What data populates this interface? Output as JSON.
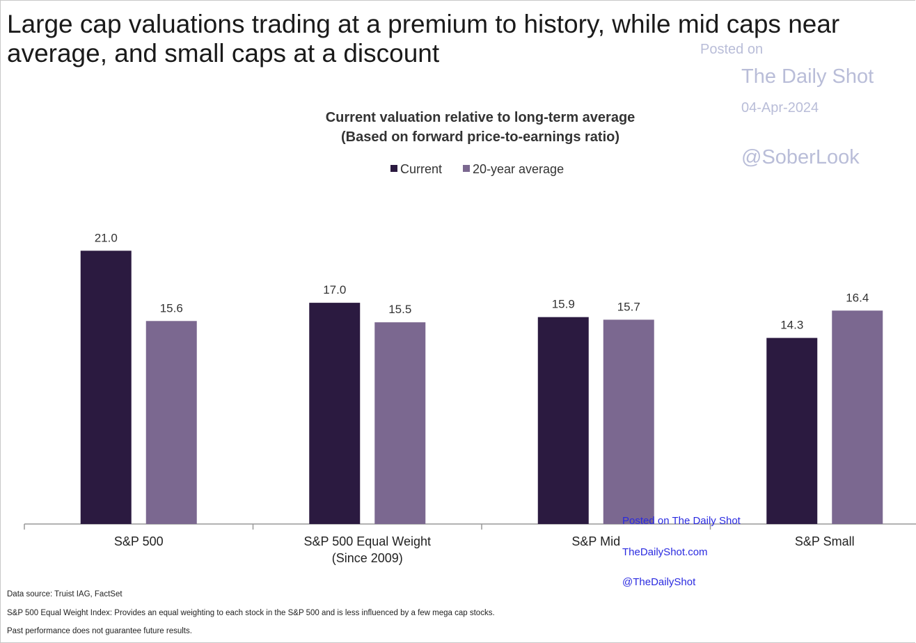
{
  "headline": "Large cap valuations trading at a premium to history, while mid caps near\naverage, and small caps at a discount",
  "watermark": {
    "posted": "Posted on",
    "source": "The Daily Shot",
    "date": "04-Apr-2024",
    "handle": "@SoberLook"
  },
  "overlay": {
    "posted": "Posted on The Daily Shot",
    "site": "TheDailyShot.com",
    "handle": "@TheDailyShot"
  },
  "chart_data": {
    "type": "bar",
    "title": "Current valuation relative to long-term average",
    "subtitle": "(Based on forward price-to-earnings ratio)",
    "categories": [
      "S&P 500",
      "S&P 500 Equal Weight\n(Since 2009)",
      "S&P Mid",
      "S&P Small"
    ],
    "series": [
      {
        "name": "Current",
        "color": "#2b1a40",
        "values": [
          21.0,
          17.0,
          15.9,
          14.3
        ],
        "value_labels": [
          "21.0",
          "17.0",
          "15.9",
          "14.3"
        ]
      },
      {
        "name": "20-year average",
        "color": "#7b6890",
        "values": [
          15.6,
          15.5,
          15.7,
          16.4
        ],
        "value_labels": [
          "15.6",
          "15.5",
          "15.7",
          "16.4"
        ]
      }
    ]
  },
  "footnotes": [
    "Data source: Truist IAG, FactSet",
    "S&P 500 Equal Weight Index: Provides an equal weighting to each stock in the S&P 500 and is less influenced by a few mega cap stocks.",
    "Past performance does not guarantee future results."
  ]
}
